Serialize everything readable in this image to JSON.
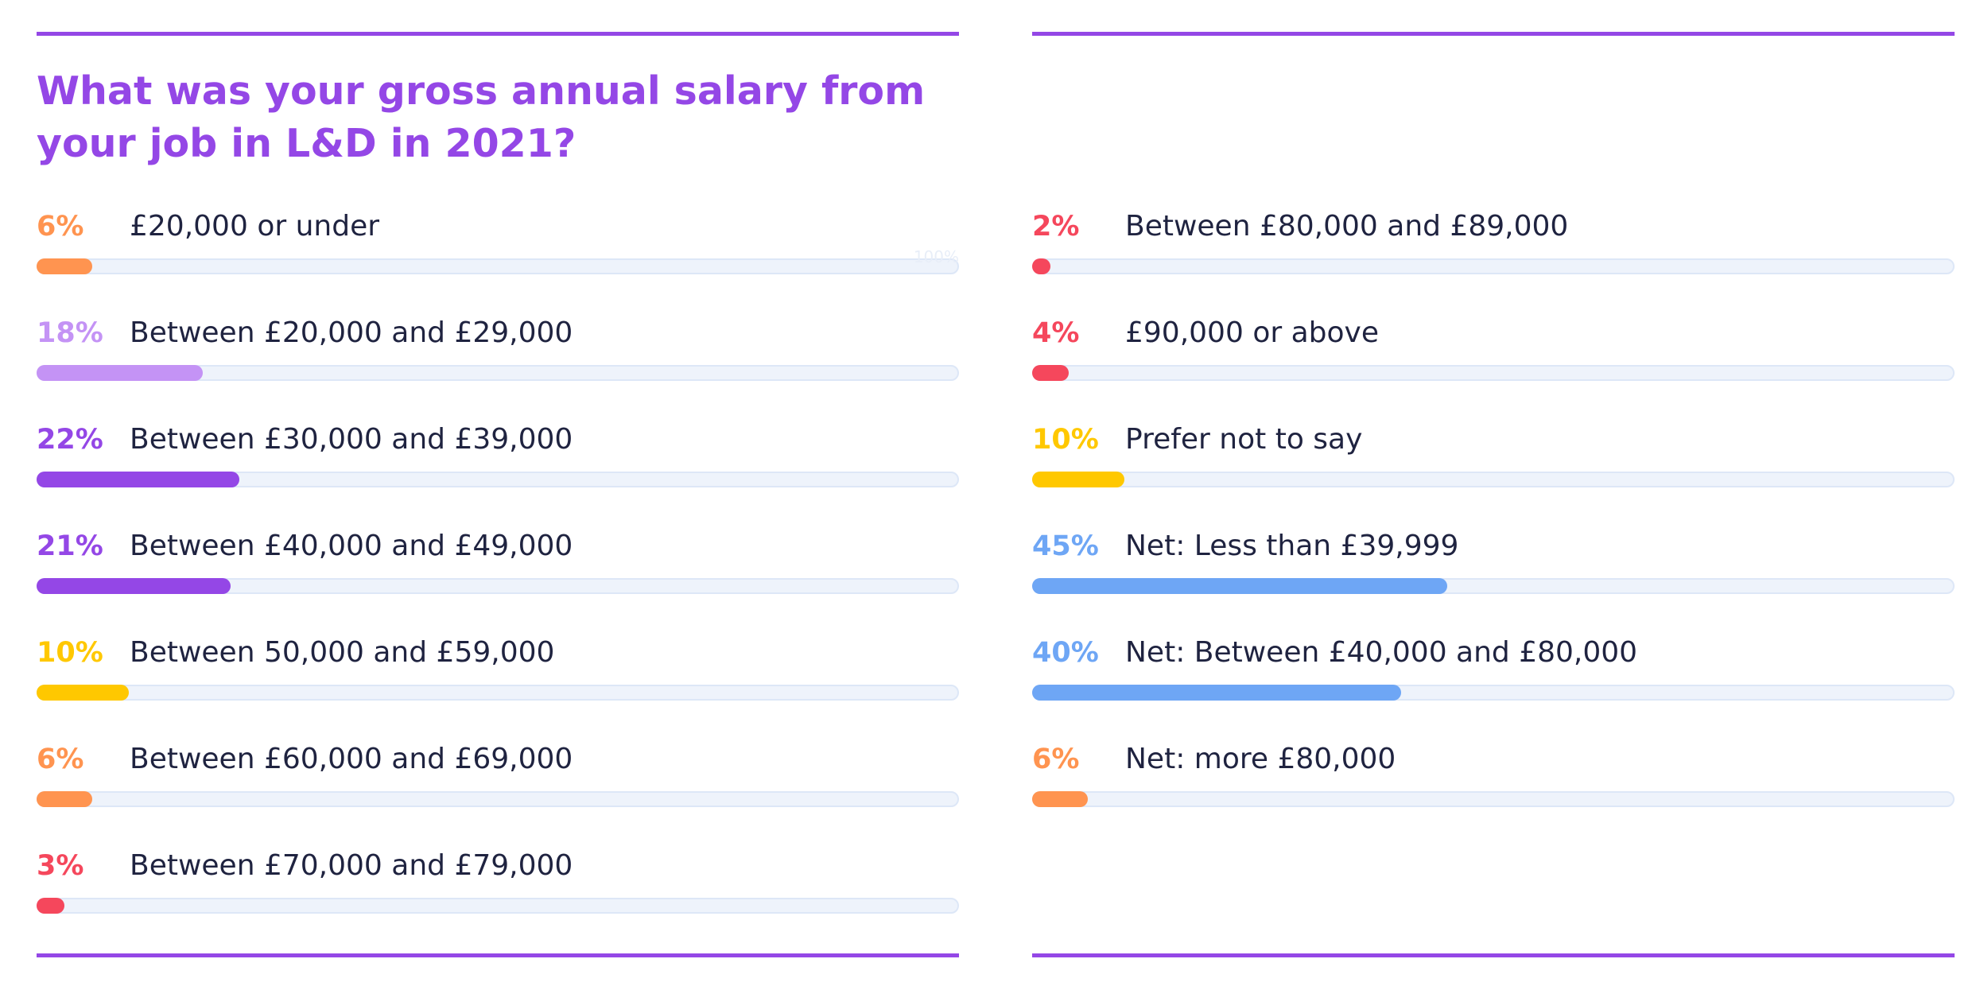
{
  "title": "What was your gross annual salary from your job in L&D in 2021?",
  "scale_label": "100%",
  "chart_data": {
    "type": "bar",
    "orientation": "horizontal",
    "unit": "%",
    "xlim": [
      0,
      100
    ],
    "grid": false,
    "columns": [
      [
        {
          "label": "£20,000 or under",
          "pct": "6%",
          "value": 6,
          "color": "#ff9450"
        },
        {
          "label": "Between £20,000 and £29,000",
          "pct": "18%",
          "value": 18,
          "color": "#c493f5"
        },
        {
          "label": "Between £30,000 and £39,000",
          "pct": "22%",
          "value": 22,
          "color": "#9447e6"
        },
        {
          "label": "Between £40,000 and £49,000",
          "pct": "21%",
          "value": 21,
          "color": "#9447e6"
        },
        {
          "label": "Between 50,000 and £59,000",
          "pct": "10%",
          "value": 10,
          "color": "#ffc800"
        },
        {
          "label": "Between £60,000 and £69,000",
          "pct": "6%",
          "value": 6,
          "color": "#ff9450"
        },
        {
          "label": "Between £70,000 and £79,000",
          "pct": "3%",
          "value": 3,
          "color": "#f5475c"
        }
      ],
      [
        {
          "label": "Between £80,000 and £89,000",
          "pct": "2%",
          "value": 2,
          "color": "#f5475c"
        },
        {
          "label": "£90,000 or above",
          "pct": "4%",
          "value": 4,
          "color": "#f5475c"
        },
        {
          "label": "Prefer not to say",
          "pct": "10%",
          "value": 10,
          "color": "#ffc800"
        },
        {
          "label": "Net: Less than £39,999",
          "pct": "45%",
          "value": 45,
          "color": "#6ea6f5"
        },
        {
          "label": "Net: Between £40,000 and £80,000",
          "pct": "40%",
          "value": 40,
          "color": "#6ea6f5"
        },
        {
          "label": "Net: more £80,000",
          "pct": "6%",
          "value": 6,
          "color": "#ff9450"
        }
      ]
    ]
  }
}
